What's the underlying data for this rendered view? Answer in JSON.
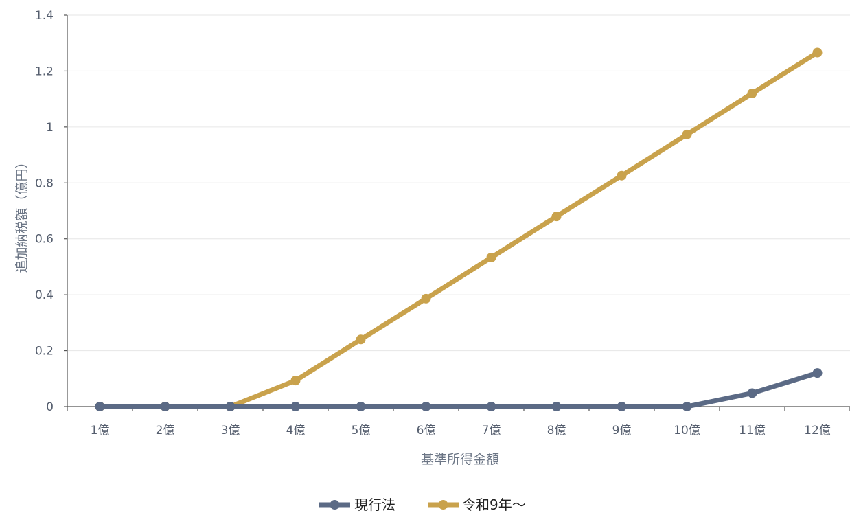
{
  "chart_data": {
    "type": "line",
    "title": "",
    "xlabel": "基準所得金額",
    "ylabel": "追加納税額（億円）",
    "categories": [
      "1億",
      "2億",
      "3億",
      "4億",
      "5億",
      "6億",
      "7億",
      "8億",
      "9億",
      "10億",
      "11億",
      "12億"
    ],
    "ylim": [
      0,
      1.4
    ],
    "yticks": [
      "0",
      "0.2",
      "0.4",
      "0.6",
      "0.8",
      "1",
      "1.2",
      "1.4"
    ],
    "grid": true,
    "legend_position": "bottom",
    "series": [
      {
        "name": "現行法",
        "color": "#5b6a85",
        "values": [
          0,
          0,
          0,
          0,
          0,
          0,
          0,
          0,
          0,
          0,
          0.048,
          0.12
        ]
      },
      {
        "name": "令和9年～",
        "color": "#c9a24c",
        "values": [
          0,
          0,
          0,
          0.093,
          0.24,
          0.386,
          0.533,
          0.68,
          0.826,
          0.973,
          1.12,
          1.266
        ]
      }
    ]
  }
}
